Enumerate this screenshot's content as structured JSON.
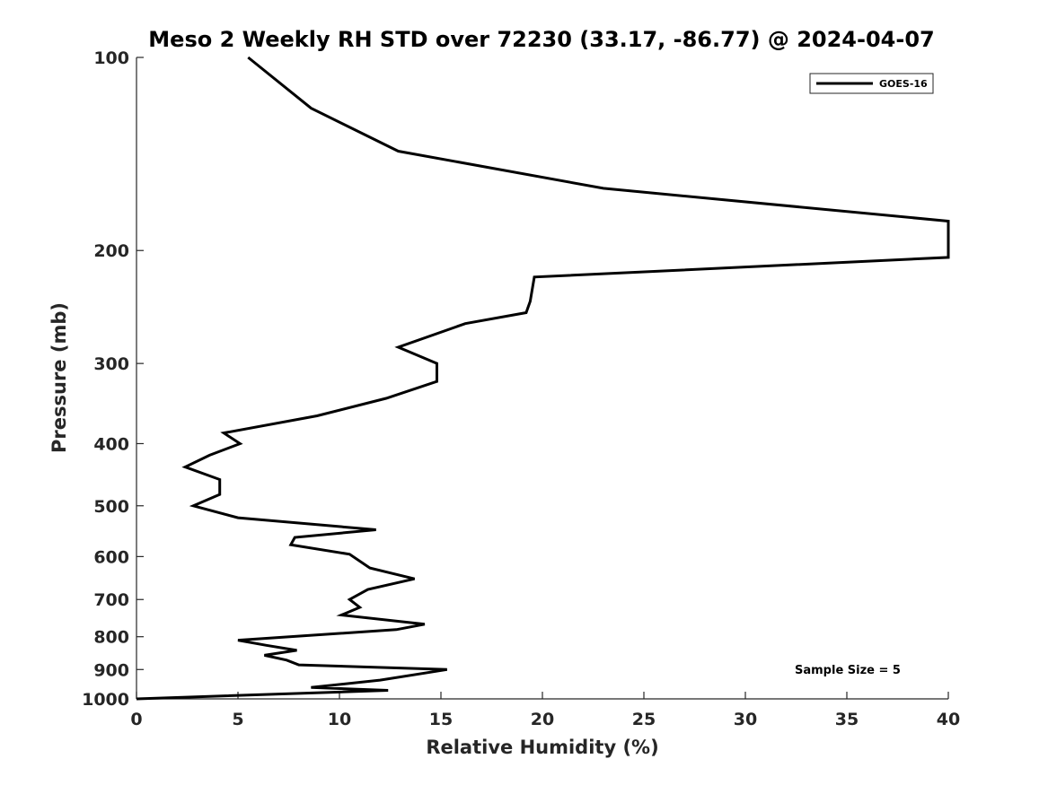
{
  "chart_data": {
    "type": "line",
    "title": "Meso 2 Weekly RH STD over 72230 (33.17, -86.77) @ 2024-04-07",
    "xlabel": "Relative Humidity (%)",
    "ylabel": "Pressure (mb)",
    "xlim": [
      0,
      40
    ],
    "ylim": [
      100,
      1000
    ],
    "yscale": "log",
    "y_reversed": true,
    "grid": false,
    "legend_position": "top-right",
    "x_ticks": [
      "0",
      "5",
      "10",
      "15",
      "20",
      "25",
      "30",
      "35",
      "40"
    ],
    "y_ticks": [
      "100",
      "200",
      "300",
      "400",
      "500",
      "600",
      "700",
      "800",
      "900",
      "1000"
    ],
    "series": [
      {
        "name": "GOES-16",
        "color": "#000000",
        "x": [
          5.5,
          8.6,
          12.9,
          23.0,
          40.0,
          40.0,
          19.6,
          19.4,
          19.2,
          16.2,
          12.9,
          14.8,
          14.8,
          12.3,
          8.9,
          4.3,
          5.1,
          3.6,
          2.4,
          4.1,
          4.1,
          2.8,
          5.0,
          11.8,
          7.8,
          7.6,
          10.5,
          11.5,
          13.7,
          11.4,
          10.5,
          11.0,
          10.1,
          14.2,
          12.8,
          5.0,
          6.4,
          7.9,
          6.3,
          7.4,
          8.0,
          15.3,
          12.0,
          8.6,
          12.4,
          0.0
        ],
        "y": [
          100,
          120,
          140,
          160,
          180,
          205,
          220,
          240,
          250,
          260,
          283,
          300,
          320,
          340,
          362,
          385,
          400,
          417,
          435,
          455,
          480,
          500,
          522,
          545,
          560,
          575,
          595,
          625,
          650,
          675,
          700,
          720,
          740,
          765,
          780,
          810,
          825,
          840,
          855,
          870,
          885,
          900,
          935,
          960,
          970,
          1000
        ]
      }
    ],
    "legend": [
      "GOES-16"
    ],
    "annotation": "Sample Size = 5"
  }
}
